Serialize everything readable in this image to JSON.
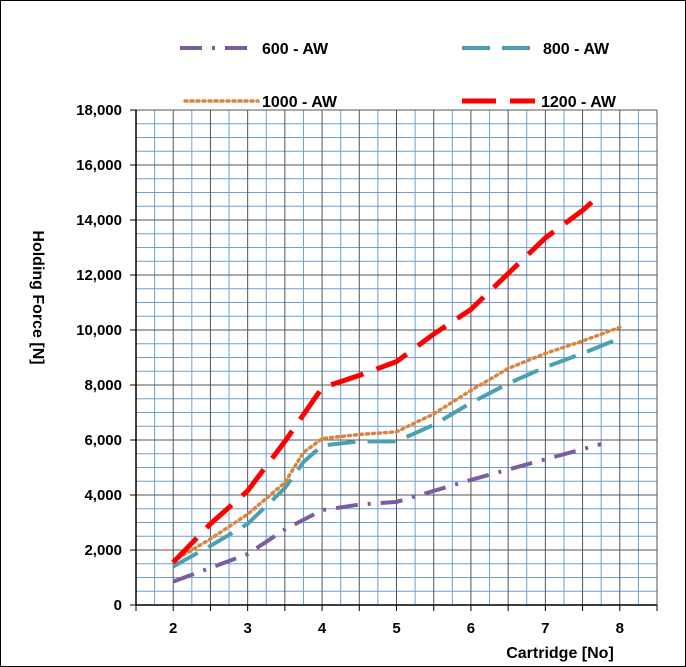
{
  "chart_data": {
    "type": "line",
    "xlabel": "Cartridge [No]",
    "ylabel": "Holding Force [N]",
    "x_ticks": [
      "2",
      "3",
      "4",
      "5",
      "6",
      "7",
      "8"
    ],
    "y_ticks": [
      "0",
      "2,000",
      "4,000",
      "6,000",
      "8,000",
      "10,000",
      "12,000",
      "14,000",
      "16,000",
      "18,000"
    ],
    "xlim": [
      1.5,
      8.5
    ],
    "ylim": [
      0,
      18000
    ],
    "grid": true,
    "legend_position": "top",
    "series": [
      {
        "name": "600 - AW",
        "color": "#7B5C9E",
        "style": "dashdot",
        "x": [
          2,
          3,
          3.5,
          4,
          4.5,
          5,
          6,
          7,
          7.75
        ],
        "y": [
          850,
          1850,
          2750,
          3450,
          3650,
          3750,
          4550,
          5300,
          5850
        ]
      },
      {
        "name": "800 - AW",
        "color": "#4BA0AF",
        "style": "dashed",
        "x": [
          2,
          2.5,
          3,
          3.5,
          3.75,
          4,
          4.5,
          5,
          5.5,
          6,
          6.5,
          7,
          7.5,
          8
        ],
        "y": [
          1400,
          2150,
          2950,
          4250,
          5200,
          5800,
          5950,
          5950,
          6550,
          7350,
          8050,
          8650,
          9150,
          9700
        ]
      },
      {
        "name": "1000 - AW",
        "color": "#D9853B",
        "style": "dotted",
        "x": [
          2,
          2.5,
          3,
          3.5,
          3.75,
          4,
          4.5,
          5,
          5.5,
          6,
          6.5,
          7,
          7.5,
          8
        ],
        "y": [
          1600,
          2400,
          3300,
          4450,
          5550,
          6050,
          6200,
          6300,
          6950,
          7800,
          8600,
          9150,
          9600,
          10100
        ]
      },
      {
        "name": "1200 - AW",
        "color": "#FF0000",
        "style": "longdash",
        "x": [
          2,
          2.5,
          3,
          3.5,
          4,
          4.5,
          5,
          5.5,
          6,
          6.5,
          7,
          7.5,
          7.75
        ],
        "y": [
          1550,
          2950,
          4150,
          5950,
          7900,
          8350,
          8850,
          9850,
          10750,
          12050,
          13350,
          14350,
          14950
        ]
      }
    ]
  }
}
